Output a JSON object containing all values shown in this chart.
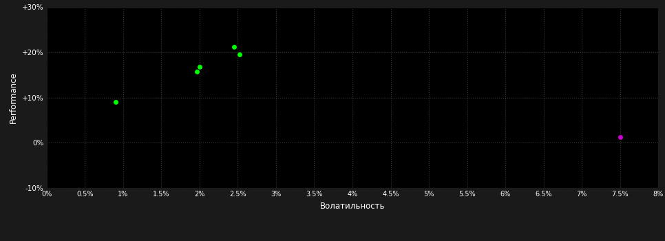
{
  "background_color": "#1a1a1a",
  "plot_bg_color": "#000000",
  "grid_color": "#3a3a3a",
  "text_color": "#ffffff",
  "xlabel": "Волатильность",
  "ylabel": "Performance",
  "xlim": [
    0.0,
    0.08
  ],
  "ylim": [
    -0.1,
    0.3
  ],
  "xtick_vals": [
    0.0,
    0.005,
    0.01,
    0.015,
    0.02,
    0.025,
    0.03,
    0.035,
    0.04,
    0.045,
    0.05,
    0.055,
    0.06,
    0.065,
    0.07,
    0.075,
    0.08
  ],
  "xtick_labels": [
    "0%",
    "0.5%",
    "1%",
    "1.5%",
    "2%",
    "2.5%",
    "3%",
    "3.5%",
    "4%",
    "4.5%",
    "5%",
    "5.5%",
    "6%",
    "6.5%",
    "7%",
    "7.5%",
    "8%"
  ],
  "ytick_vals": [
    -0.1,
    0.0,
    0.1,
    0.2,
    0.3
  ],
  "ytick_labels": [
    "-10%",
    "0%",
    "+10%",
    "+20%",
    "+30%"
  ],
  "green_points": [
    [
      0.009,
      0.09
    ],
    [
      0.0197,
      0.158
    ],
    [
      0.02,
      0.168
    ],
    [
      0.0245,
      0.213
    ],
    [
      0.0252,
      0.196
    ]
  ],
  "magenta_points": [
    [
      0.075,
      0.013
    ]
  ],
  "green_color": "#00ff00",
  "magenta_color": "#cc00cc",
  "marker_size": 5,
  "figsize": [
    9.66,
    3.5
  ],
  "dpi": 100
}
